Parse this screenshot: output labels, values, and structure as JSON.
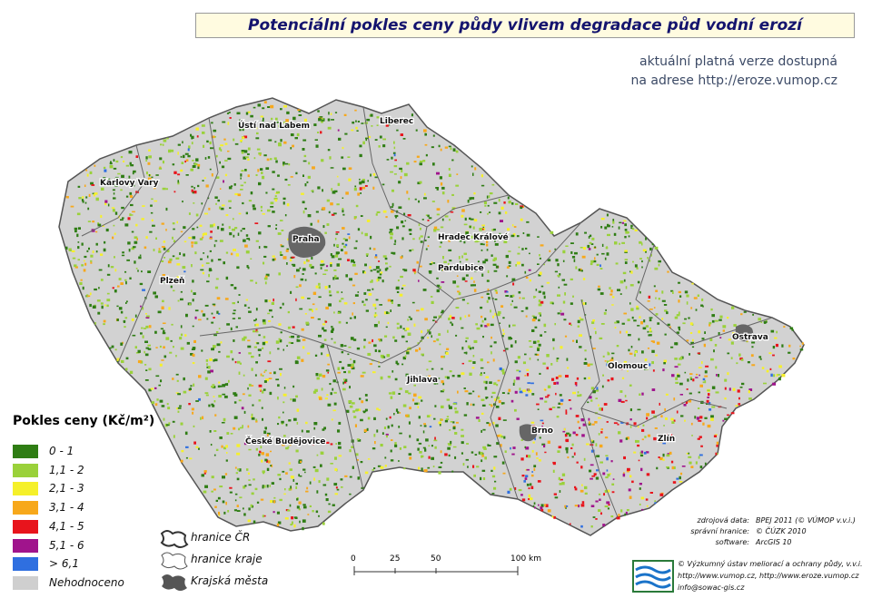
{
  "header": {
    "title": "Potenciální pokles ceny půdy vlivem degradace půd vodní erozí",
    "note_lines": [
      "aktuální platná verze dostupná",
      "na adrese http://eroze.vumop.cz"
    ]
  },
  "cities": [
    {
      "label": "Ústí nad Labem"
    },
    {
      "label": "Liberec"
    },
    {
      "label": "Karlovy Vary"
    },
    {
      "label": "Praha"
    },
    {
      "label": "Hradec Králové"
    },
    {
      "label": "Pardubice"
    },
    {
      "label": "Plzeň"
    },
    {
      "label": "Ostrava"
    },
    {
      "label": "Olomouc"
    },
    {
      "label": "Jihlava"
    },
    {
      "label": "Brno"
    },
    {
      "label": "České Budějovice"
    },
    {
      "label": "Zlín"
    }
  ],
  "legend": {
    "title": "Pokles ceny (Kč/m²)",
    "items": [
      {
        "label": "0 - 1",
        "color": "#2f7d14"
      },
      {
        "label": "1,1 - 2",
        "color": "#9ad13a"
      },
      {
        "label": "2,1 - 3",
        "color": "#f5f02a"
      },
      {
        "label": "3,1 - 4",
        "color": "#f7a81b"
      },
      {
        "label": "4,1 - 5",
        "color": "#e8141c"
      },
      {
        "label": "5,1 - 6",
        "color": "#a0148c"
      },
      {
        "label": "> 6,1",
        "color": "#2f6fe0"
      },
      {
        "label": "Nehodnoceno",
        "color": "#cfcfcf"
      }
    ]
  },
  "boundaries": [
    {
      "label": "hranice ČR"
    },
    {
      "label": "hranice kraje"
    },
    {
      "label": "Krajská města"
    }
  ],
  "scale_bar": {
    "labels": [
      "0",
      "25",
      "50",
      "100 km"
    ]
  },
  "credits": {
    "rows": [
      {
        "key": "zdrojová data:",
        "value": "BPEJ 2011 (© VÚMOP v.v.i.)"
      },
      {
        "key": "správní hranice:",
        "value": "© ČÚZK 2010"
      },
      {
        "key": "software:",
        "value": "ArcGIS 10"
      }
    ],
    "institute": [
      "© Výzkumný ústav meliorací a ochrany půdy, v.v.i.",
      "http://www.vumop.cz, http://www.eroze.vumop.cz",
      "info@sowac-gis.cz"
    ]
  }
}
